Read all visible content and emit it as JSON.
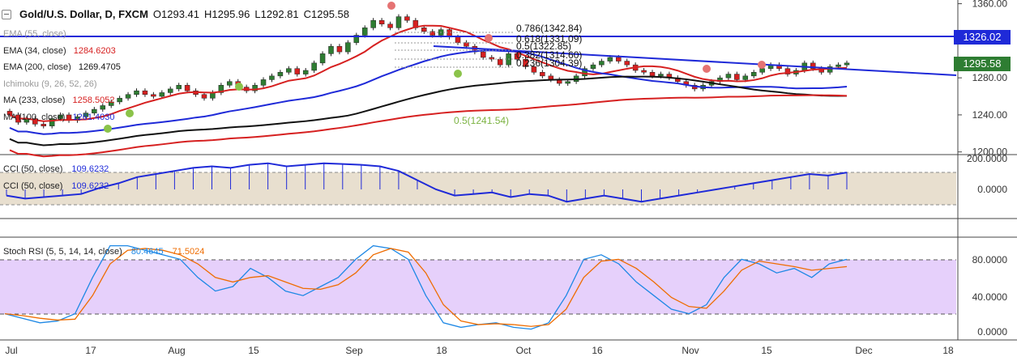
{
  "header": {
    "symbol": "Gold/U.S. Dollar, D, FXCM",
    "open": "O1293.41",
    "high": "H1295.96",
    "low": "L1292.81",
    "close": "C1295.58"
  },
  "indicators": [
    {
      "name": "EMA (55, close)",
      "value": ""
    },
    {
      "name": "EMA (34, close)",
      "value": "1284.6203"
    },
    {
      "name": "EMA (200, close)",
      "value": "1269.4705"
    },
    {
      "name": "Ichimoku (9, 26, 52, 26)",
      "value": ""
    },
    {
      "name": "MA (233, close)",
      "value": "1258.5052"
    },
    {
      "name": "MA (100, close)",
      "value": "1261.4030"
    }
  ],
  "fib_levels": [
    "0.786(1342.84)",
    "0.618(1331.09)",
    "0.5(1322.85)",
    "0.382(1314.60)",
    "0.236(1304.39)",
    "0.5(1241.54)"
  ],
  "price_badges": {
    "resistance": "1326.02",
    "last": "1295.58",
    "resistance_color": "#1f2ad8",
    "last_color": "#2e7d32"
  },
  "cci_panel": {
    "label1": "CCI (50, close)",
    "value1": "109.6232",
    "label2": "CCI (50, close)",
    "value2": "109.6232"
  },
  "rsi_panel": {
    "label": "Stoch RSI (5, 5, 14, 14, close)",
    "k_value": "80.4645",
    "d_value": "71.5024"
  },
  "chart_data": {
    "type": "line",
    "title": "Gold/U.S. Dollar, D, FXCM",
    "x_ticks": [
      "Jul",
      "17",
      "Aug",
      "15",
      "Sep",
      "18",
      "Oct",
      "16",
      "Nov",
      "15",
      "Dec",
      "18"
    ],
    "price_axis": {
      "ticks": [
        "1360.00",
        "1320.00",
        "1280.00",
        "1240.00",
        "1200.00"
      ],
      "ylim": [
        1198,
        1364
      ]
    },
    "cci_axis": {
      "ticks": [
        "200.0000",
        "0.0000"
      ]
    },
    "rsi_axis": {
      "ticks": [
        "80.0000",
        "40.0000",
        "0.0000"
      ]
    },
    "candles_close": [
      1240,
      1232,
      1236,
      1230,
      1228,
      1236,
      1240,
      1234,
      1238,
      1242,
      1246,
      1250,
      1254,
      1258,
      1262,
      1266,
      1262,
      1260,
      1264,
      1268,
      1272,
      1266,
      1262,
      1258,
      1264,
      1272,
      1276,
      1270,
      1266,
      1272,
      1278,
      1282,
      1286,
      1290,
      1284,
      1288,
      1296,
      1306,
      1314,
      1308,
      1318,
      1326,
      1334,
      1342,
      1338,
      1334,
      1346,
      1342,
      1334,
      1330,
      1326,
      1332,
      1324,
      1318,
      1314,
      1308,
      1302,
      1300,
      1294,
      1306,
      1300,
      1292,
      1286,
      1282,
      1278,
      1274,
      1276,
      1282,
      1290,
      1294,
      1298,
      1302,
      1298,
      1294,
      1288,
      1286,
      1282,
      1284,
      1280,
      1276,
      1272,
      1268,
      1272,
      1276,
      1280,
      1284,
      1278,
      1282,
      1286,
      1290,
      1294,
      1290,
      1284,
      1288,
      1296,
      1290,
      1286,
      1292,
      1294,
      1296
    ],
    "series": [
      {
        "name": "CCI (50, close)",
        "values": [
          -40,
          -60,
          -50,
          -40,
          -30,
          10,
          40,
          80,
          100,
          120,
          140,
          150,
          140,
          160,
          170,
          150,
          160,
          170,
          165,
          160,
          150,
          120,
          60,
          0,
          -40,
          -30,
          -20,
          -50,
          -30,
          -40,
          -80,
          -60,
          -40,
          -60,
          -80,
          -60,
          -40,
          -20,
          0,
          20,
          40,
          60,
          80,
          100,
          90,
          110
        ]
      },
      {
        "name": "Stoch RSI %K",
        "values": [
          20,
          15,
          10,
          12,
          20,
          60,
          95,
          95,
          90,
          85,
          80,
          60,
          45,
          50,
          70,
          60,
          45,
          40,
          50,
          60,
          80,
          95,
          92,
          80,
          40,
          10,
          5,
          8,
          10,
          5,
          3,
          10,
          40,
          80,
          85,
          75,
          55,
          40,
          25,
          20,
          30,
          60,
          80,
          75,
          65,
          70,
          60,
          75,
          80
        ]
      },
      {
        "name": "Stoch RSI %D",
        "values": [
          20,
          18,
          15,
          13,
          14,
          40,
          75,
          90,
          92,
          90,
          85,
          75,
          60,
          55,
          60,
          62,
          55,
          48,
          47,
          52,
          65,
          85,
          92,
          88,
          65,
          30,
          12,
          8,
          9,
          8,
          6,
          8,
          25,
          60,
          78,
          80,
          70,
          55,
          38,
          28,
          26,
          45,
          68,
          78,
          75,
          72,
          68,
          70,
          72
        ]
      }
    ]
  }
}
